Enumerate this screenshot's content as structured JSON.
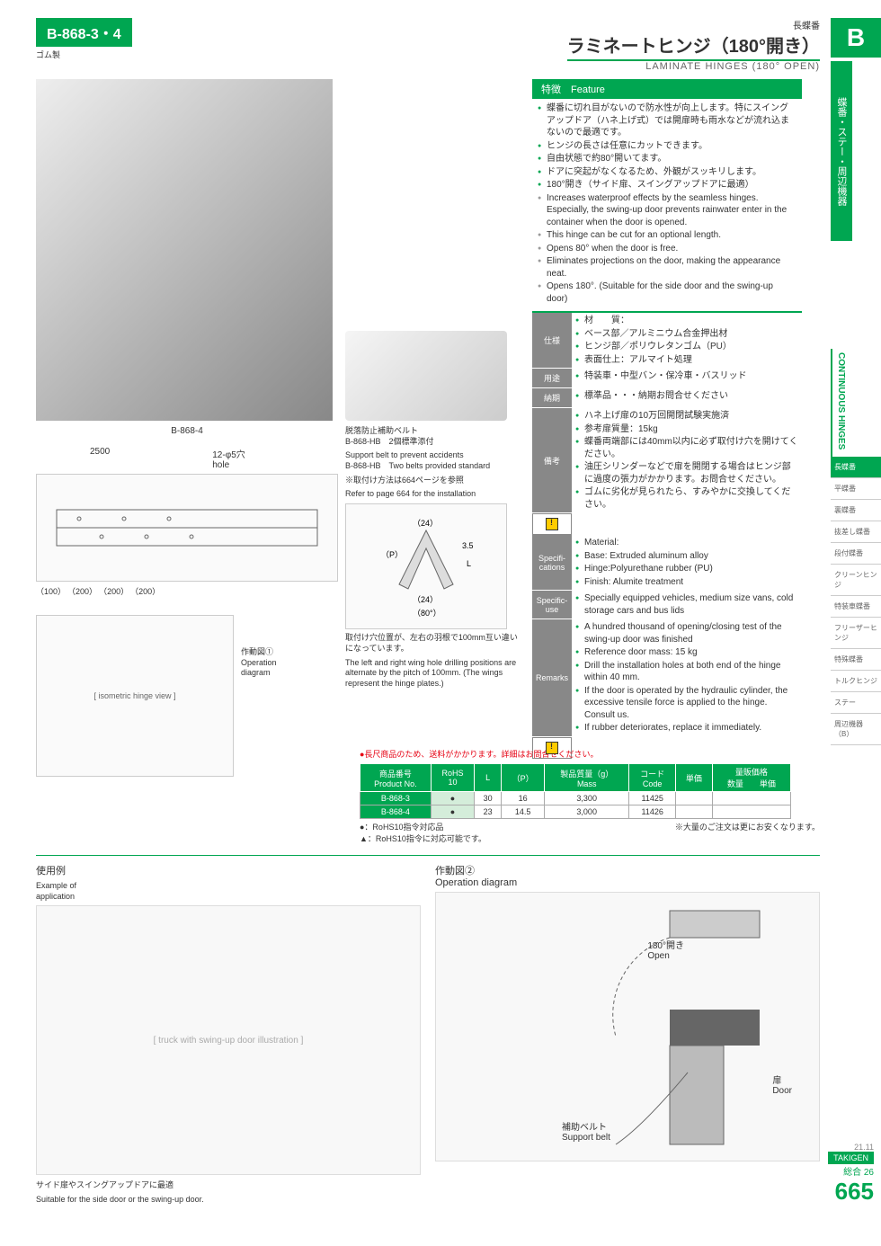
{
  "header": {
    "part_tag": "B-868-3・4",
    "part_sub": "ゴム製",
    "title_sup": "長蝶番",
    "title_main": "ラミネートヒンジ（180°開き）",
    "title_en": "LAMINATE HINGES (180° OPEN)"
  },
  "side": {
    "letter": "B",
    "category": "蝶番・ステー・周辺機器",
    "rotate_label": "CONTINUOUS HINGES",
    "items": [
      "長蝶番",
      "平蝶番",
      "裏蝶番",
      "抜差し蝶番",
      "段付蝶番",
      "クリーンヒンジ",
      "特装車蝶番",
      "フリーザーヒンジ",
      "特殊蝶番",
      "トルクヒンジ",
      "ステー",
      "周辺機器（B）"
    ]
  },
  "feature": {
    "header": "特徴　Feature",
    "jp": [
      "蝶番に切れ目がないので防水性が向上します。特にスイングアップドア（ハネ上げ式）では開扉時も雨水などが流れ込まないので最適です。",
      "ヒンジの長さは任意にカットできます。",
      "自由状態で約80°開いてます。",
      "ドアに突起がなくなるため、外観がスッキリします。",
      "180°開き（サイド扉、スイングアップドアに最適）"
    ],
    "en": [
      "Increases waterproof effects by the seamless hinges. Especially, the swing-up door prevents rainwater enter in the container when the door is opened.",
      "This hinge can be cut for an optional length.",
      "Opens 80° when the door is free.",
      "Eliminates projections on the door, making the appearance neat.",
      "Opens 180°. (Suitable for the side door and the swing-up door)"
    ]
  },
  "specs": [
    {
      "label": "仕様",
      "lines": [
        "材　　質：",
        "ベース部／アルミニウム合金押出材",
        "ヒンジ部／ポリウレタンゴム（PU）",
        "表面仕上：アルマイト処理"
      ]
    },
    {
      "label": "用途",
      "lines": [
        "特装車・中型バン・保冷車・バスリッド"
      ]
    },
    {
      "label": "納期",
      "lines": [
        "標準品・・・納期お問合せください"
      ]
    },
    {
      "label": "備考",
      "lines": [
        "ハネ上げ扉の10万回開閉試験実施済",
        "参考扉質量：15kg",
        "蝶番両端部には40mm以内に必ず取付け穴を開けてください。",
        "油圧シリンダーなどで扉を開閉する場合はヒンジ部に過度の張力がかかります。お問合せください。",
        "ゴムに劣化が見られたら、すみやかに交換してください。"
      ],
      "warn": true
    }
  ],
  "specs_en": [
    {
      "label": "Specifi-cations",
      "lines": [
        "Material:",
        "Base: Extruded aluminum alloy",
        "Hinge:Polyurethane rubber (PU)",
        "Finish: Alumite treatment"
      ]
    },
    {
      "label": "Specific-use",
      "lines": [
        "Specially equipped vehicles, medium size vans, cold storage cars and bus lids"
      ]
    },
    {
      "label": "Remarks",
      "lines": [
        "A hundred thousand of opening/closing test of the swing-up door was finished",
        "Reference door mass: 15 kg",
        "Drill the installation holes at both end of the hinge within 40 mm.",
        "If the door is operated by the hydraulic cylinder, the excessive tensile force is applied to the hinge. Consult us.",
        "If rubber deteriorates, replace it immediately."
      ],
      "warn": true
    }
  ],
  "mid": {
    "belt_jp": "脱落防止補助ベルト\nB-868-HB　2個標準添付",
    "belt_en": "Support belt to prevent accidents\nB-868-HB　Two belts provided standard",
    "ref_jp": "※取付け方法は664ページを参照",
    "ref_en": "Refer to page 664 for the installation",
    "hole_note_jp": "取付け穴位置が、左右の羽根で100mm互い違いになっています。",
    "hole_note_en": "The left and right wing hole drilling positions are alternate by the pitch of 100mm. (The wings represent the hinge plates.)",
    "dims": {
      "width": "2500",
      "hole": "12-φ5穴\nhole",
      "sections": [
        "（100）",
        "（200）",
        "（200）",
        "（200）"
      ],
      "angle": "（80°）",
      "p24": "（24）",
      "pL": "L",
      "p35": "3.5",
      "pP": "（P）"
    }
  },
  "left": {
    "product_label": "B-868-4",
    "op_label": "作動図①\nOperation\ndiagram"
  },
  "table": {
    "red_note": "●長尺商品のため、送料がかかります。詳細はお問合せください。",
    "headers": [
      "商品番号\nProduct No.",
      "RoHS\n10",
      "L",
      "（P）",
      "製品質量（g）\nMass",
      "コード\nCode",
      "単価",
      "量販価格\n数量　　単価"
    ],
    "rows": [
      [
        "B-868-3",
        "●",
        "30",
        "16",
        "3,300",
        "11425",
        "",
        ""
      ],
      [
        "B-868-4",
        "●",
        "23",
        "14.5",
        "3,000",
        "11426",
        "",
        ""
      ]
    ],
    "rohs_note1": "●：RoHS10指令対応品",
    "rohs_note2": "▲：RoHS10指令に対応可能です。",
    "bulk_note": "※大量のご注文は更にお安くなります。"
  },
  "bottom": {
    "ex_label_jp": "使用例",
    "ex_label_en": "Example of\napplication",
    "ex_caption_jp": "サイド扉やスイングアップドアに最適",
    "ex_caption_en": "Suitable for the side door or the swing-up door.",
    "op2_label": "作動図②\nOperation diagram",
    "open_label": "180°開き\nOpen",
    "door_label": "扉\nDoor",
    "belt_label": "補助ベルト\nSupport belt"
  },
  "footer": {
    "date": "21.11",
    "brand": "TAKIGEN",
    "vol": "総合 26",
    "page": "665"
  }
}
